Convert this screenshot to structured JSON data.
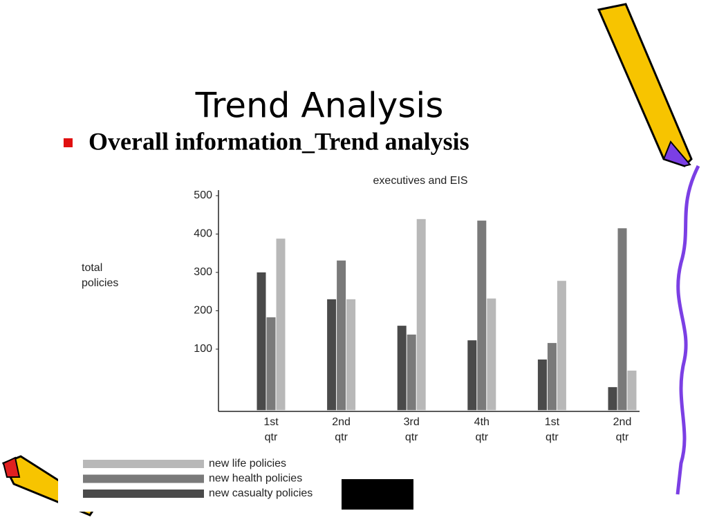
{
  "slide": {
    "title": "Trend Analysis",
    "bullet": "Overall information_Trend analysis"
  },
  "chart_data": {
    "type": "bar",
    "title": "executives and EIS",
    "ylabel_lines": [
      "total",
      "policies"
    ],
    "categories": [
      "1st qtr",
      "2nd qtr",
      "3rd qtr",
      "4th qtr",
      "1st qtr",
      "2nd qtr"
    ],
    "series": [
      {
        "name": "new life policies",
        "color": "#b8b8b8",
        "values": [
          388,
          230,
          439,
          232,
          278,
          44
        ]
      },
      {
        "name": "new health policies",
        "color": "#7a7a7a",
        "values": [
          183,
          331,
          138,
          435,
          116,
          415
        ]
      },
      {
        "name": "new casualty policies",
        "color": "#4a4a4a",
        "values": [
          300,
          230,
          161,
          123,
          73,
          1
        ]
      }
    ],
    "ylim": [
      -59,
      500
    ],
    "yticks": [
      100,
      200,
      300,
      400,
      500
    ],
    "grid": false
  }
}
